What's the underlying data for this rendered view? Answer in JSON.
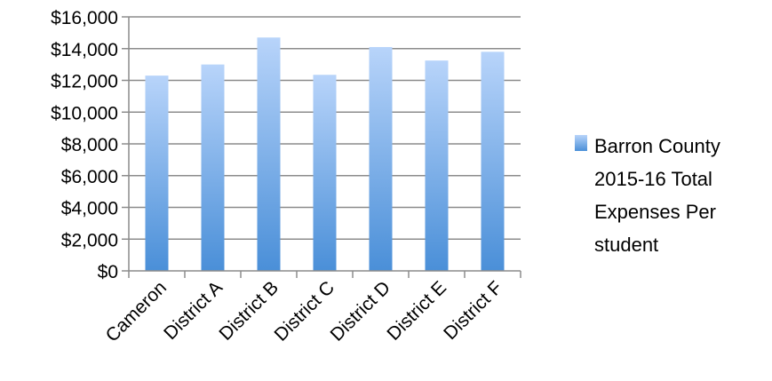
{
  "chart_data": {
    "type": "bar",
    "categories": [
      "Cameron",
      "District A",
      "District B",
      "District C",
      "District D",
      "District E",
      "District F"
    ],
    "series": [
      {
        "name": "Barron County 2015-16 Total Expenses Per student",
        "values": [
          12300,
          13000,
          14700,
          12350,
          14100,
          13250,
          13800
        ]
      }
    ],
    "ylim": [
      0,
      16000
    ],
    "yticks": [
      0,
      2000,
      4000,
      6000,
      8000,
      10000,
      12000,
      14000,
      16000
    ],
    "ytick_labels": [
      "$0",
      "$2,000",
      "$4,000",
      "$6,000",
      "$8,000",
      "$10,000",
      "$12,000",
      "$14,000",
      "$16,000"
    ],
    "grid": true,
    "legend_position": "right",
    "legend_lines": [
      "Barron County",
      "2015-16 Total",
      "Expenses Per",
      "student"
    ],
    "colors": {
      "bar_top": "#b8d4fa",
      "bar_bottom": "#4a8fd8",
      "grid": "#8c8c8c",
      "axis": "#8c8c8c"
    }
  }
}
